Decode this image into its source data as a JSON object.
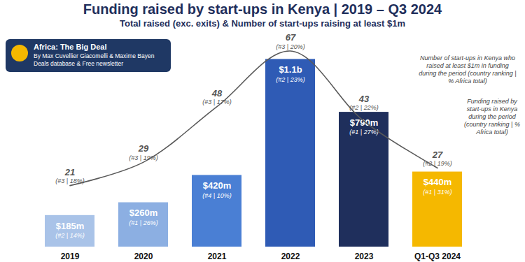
{
  "chart_data": {
    "type": "bar",
    "title": "Funding raised by start-ups in Kenya | 2019 – Q3 2024",
    "subtitle": "Total raised (exc. exits) & Number of start-ups raising at least $1m",
    "source_box": {
      "title": "Africa: The Big Deal",
      "lines": [
        "By Max Cuvellier Giacomelli & Maxime Bayen",
        "Deals database & Free newsletter"
      ]
    },
    "annotations": [
      "Number of start-ups in Kenya who raised at least $1m in funding during the period (country ranking | % Africa total)",
      "Funding raised by start-ups in Kenya during the period (country ranking | % Africa total)"
    ],
    "categories": [
      "2019",
      "2020",
      "2021",
      "2022",
      "2023",
      "Q1-Q3 2024"
    ],
    "ylim": [
      0,
      1200
    ],
    "y2lim": [
      0,
      70
    ],
    "tick_labels": "x",
    "data_labels": true,
    "series": [
      {
        "type": "bar",
        "colors": [
          "#a9c3e8",
          "#8cafe2",
          "#4a7fd4",
          "#2f5bb5",
          "#1f2f5c",
          "#f5b800"
        ],
        "values": [
          185,
          260,
          420,
          1100,
          790,
          440
        ],
        "value_labels": [
          "$185m",
          "$260m",
          "$420m",
          "$1.1b",
          "$790m",
          "$440m"
        ],
        "notes": [
          "(#2 | 14%)",
          "(#1 | 26%)",
          "(#4 | 10%)",
          "(#2 | 23%)",
          "(#1 | 27%)",
          "(#1 | 31%)"
        ]
      },
      {
        "type": "line",
        "axis": "y2",
        "color": "#5a5a5a",
        "values": [
          21,
          29,
          48,
          67,
          43,
          27
        ],
        "notes": [
          "(#3 | 18%)",
          "(#3 | 19%)",
          "(#3 | 17%)",
          "(#3 | 20%)",
          "(#2 | 22%)",
          "(#2 | 19%)"
        ]
      }
    ]
  }
}
